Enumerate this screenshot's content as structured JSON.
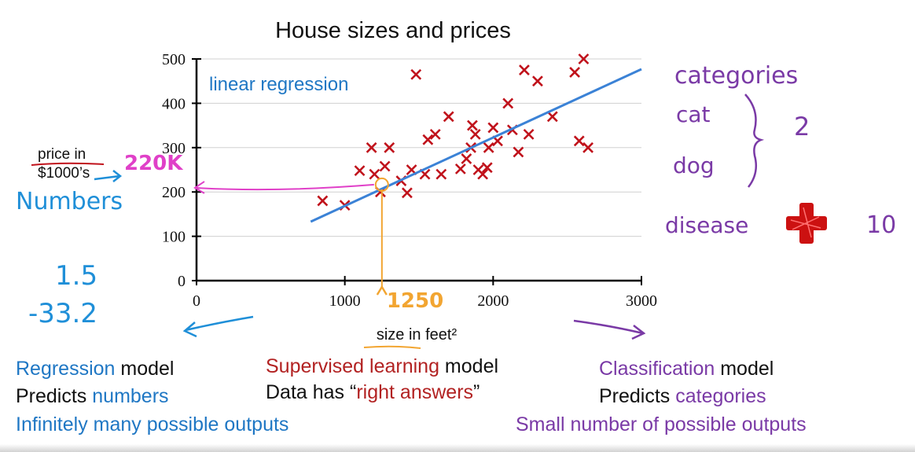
{
  "chart_data": {
    "type": "scatter",
    "title": "House sizes and prices",
    "xlabel": "size in feet²",
    "ylabel": "price in $1000’s",
    "xlim": [
      0,
      3000
    ],
    "ylim": [
      0,
      500
    ],
    "x_ticks": [
      0,
      1000,
      2000,
      3000
    ],
    "y_ticks": [
      0,
      100,
      200,
      300,
      400,
      500
    ],
    "grid": true,
    "points": [
      {
        "x": 850,
        "y": 180
      },
      {
        "x": 1000,
        "y": 170
      },
      {
        "x": 1100,
        "y": 248
      },
      {
        "x": 1180,
        "y": 300
      },
      {
        "x": 1200,
        "y": 240
      },
      {
        "x": 1240,
        "y": 200
      },
      {
        "x": 1270,
        "y": 258
      },
      {
        "x": 1300,
        "y": 300
      },
      {
        "x": 1380,
        "y": 225
      },
      {
        "x": 1420,
        "y": 198
      },
      {
        "x": 1450,
        "y": 250
      },
      {
        "x": 1480,
        "y": 465
      },
      {
        "x": 1540,
        "y": 240
      },
      {
        "x": 1560,
        "y": 318
      },
      {
        "x": 1610,
        "y": 330
      },
      {
        "x": 1650,
        "y": 240
      },
      {
        "x": 1700,
        "y": 370
      },
      {
        "x": 1780,
        "y": 252
      },
      {
        "x": 1820,
        "y": 275
      },
      {
        "x": 1850,
        "y": 300
      },
      {
        "x": 1860,
        "y": 350
      },
      {
        "x": 1880,
        "y": 330
      },
      {
        "x": 1900,
        "y": 250
      },
      {
        "x": 1930,
        "y": 240
      },
      {
        "x": 1960,
        "y": 255
      },
      {
        "x": 1970,
        "y": 300
      },
      {
        "x": 2000,
        "y": 345
      },
      {
        "x": 2030,
        "y": 315
      },
      {
        "x": 2100,
        "y": 400
      },
      {
        "x": 2130,
        "y": 340
      },
      {
        "x": 2170,
        "y": 290
      },
      {
        "x": 2210,
        "y": 475
      },
      {
        "x": 2240,
        "y": 330
      },
      {
        "x": 2300,
        "y": 450
      },
      {
        "x": 2400,
        "y": 370
      },
      {
        "x": 2550,
        "y": 470
      },
      {
        "x": 2580,
        "y": 315
      },
      {
        "x": 2610,
        "y": 500
      },
      {
        "x": 2640,
        "y": 300
      }
    ],
    "regression_line": {
      "label": "linear regression",
      "x": [
        770,
        3000
      ],
      "y": [
        133,
        477
      ]
    },
    "query": {
      "x": 1250,
      "y": 220,
      "x_label": "1250",
      "y_label": "220K"
    }
  },
  "annotations": {
    "numbers": "Numbers",
    "example_values": [
      "1.5",
      "-33.2"
    ],
    "categories_title": "categories",
    "categories": [
      "cat",
      "dog"
    ],
    "category_count": "2",
    "disease": "disease",
    "disease_count": "10"
  },
  "bottom": {
    "regression": {
      "l1a": "Regression",
      "l1b": " model",
      "l2a": "Predicts ",
      "l2b": "numbers",
      "l3": "Infinitely many possible outputs"
    },
    "supervised": {
      "l1a": "Supervised learning",
      "l1b": " model",
      "l2a": "Data has “",
      "l2b": "right answers",
      "l2c": "”"
    },
    "classification": {
      "l1a": "Classification",
      "l1b": " model",
      "l2a": "Predicts ",
      "l2b": "categories",
      "l3": "Small number of possible outputs"
    }
  },
  "colors": {
    "marker": "#c0121b",
    "line": "#3b82d6",
    "pink": "#e040c8",
    "orange": "#f2a531",
    "blue_ink": "#1f8fd8",
    "purple_ink": "#7a3aa6",
    "red_cross": "#cc1111"
  }
}
